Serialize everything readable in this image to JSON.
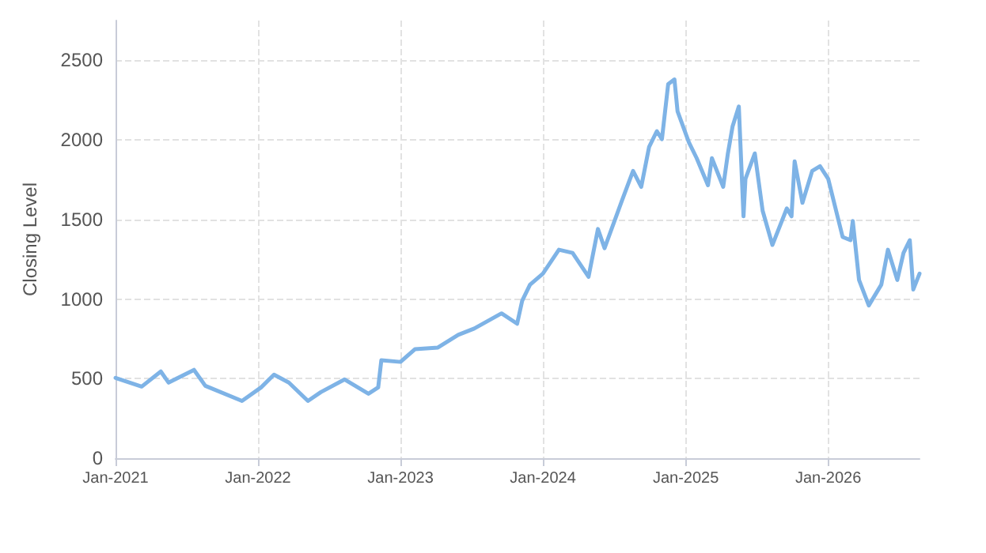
{
  "chart_data": {
    "type": "line",
    "ylabel": "Closing Level",
    "color": "#7eb3e6",
    "grid": true,
    "marker": "none",
    "line_style": "solid",
    "xlim": [
      "2021-01-01",
      "2026-08-23"
    ],
    "xticks": [
      {
        "value": "2021-01-01",
        "label": "Jan-2021"
      },
      {
        "value": "2022-01-01",
        "label": "Jan-2022"
      },
      {
        "value": "2023-01-01",
        "label": "Jan-2023"
      },
      {
        "value": "2024-01-01",
        "label": "Jan-2024"
      },
      {
        "value": "2025-01-01",
        "label": "Jan-2025"
      },
      {
        "value": "2026-01-01",
        "label": "Jan-2026"
      }
    ],
    "ylim": [
      0,
      2750
    ],
    "yticks": [
      0,
      500,
      1000,
      1500,
      2000,
      2500
    ],
    "x": [
      "2021-01-01",
      "2021-03-09",
      "2021-04-27",
      "2021-05-17",
      "2021-07-21",
      "2021-08-19",
      "2021-11-21",
      "2022-01-09",
      "2022-02-11",
      "2022-03-21",
      "2022-05-09",
      "2022-06-11",
      "2022-08-11",
      "2022-10-11",
      "2022-11-05",
      "2022-11-13",
      "2023-01-01",
      "2023-02-07",
      "2023-04-07",
      "2023-05-29",
      "2023-07-09",
      "2023-09-17",
      "2023-10-27",
      "2023-11-09",
      "2023-11-29",
      "2024-01-01",
      "2024-02-11",
      "2024-03-17",
      "2024-04-27",
      "2024-05-21",
      "2024-06-07",
      "2024-07-21",
      "2024-08-19",
      "2024-09-09",
      "2024-09-29",
      "2024-10-19",
      "2024-11-01",
      "2024-11-17",
      "2024-12-03",
      "2024-12-11",
      "2025-01-09",
      "2025-01-29",
      "2025-02-27",
      "2025-03-09",
      "2025-04-07",
      "2025-04-19",
      "2025-05-01",
      "2025-05-17",
      "2025-05-29",
      "2025-06-03",
      "2025-06-27",
      "2025-07-17",
      "2025-08-11",
      "2025-09-17",
      "2025-09-29",
      "2025-10-07",
      "2025-10-27",
      "2025-11-21",
      "2025-12-11",
      "2026-01-01",
      "2026-02-07",
      "2026-02-27",
      "2026-03-05",
      "2026-03-21",
      "2026-04-15",
      "2026-05-17",
      "2026-06-03",
      "2026-06-27",
      "2026-07-13",
      "2026-07-29",
      "2026-08-07",
      "2026-08-23"
    ],
    "values": [
      505,
      450,
      545,
      475,
      555,
      455,
      360,
      445,
      525,
      475,
      360,
      415,
      495,
      405,
      445,
      615,
      605,
      685,
      695,
      775,
      815,
      910,
      845,
      990,
      1090,
      1160,
      1310,
      1290,
      1140,
      1440,
      1320,
      1615,
      1805,
      1705,
      1955,
      2055,
      2005,
      2350,
      2380,
      2180,
      1985,
      1885,
      1715,
      1885,
      1705,
      1915,
      2085,
      2210,
      1520,
      1755,
      1915,
      1555,
      1340,
      1570,
      1520,
      1865,
      1605,
      1805,
      1835,
      1755,
      1390,
      1370,
      1490,
      1120,
      960,
      1090,
      1310,
      1120,
      1290,
      1370,
      1060,
      1160
    ]
  }
}
